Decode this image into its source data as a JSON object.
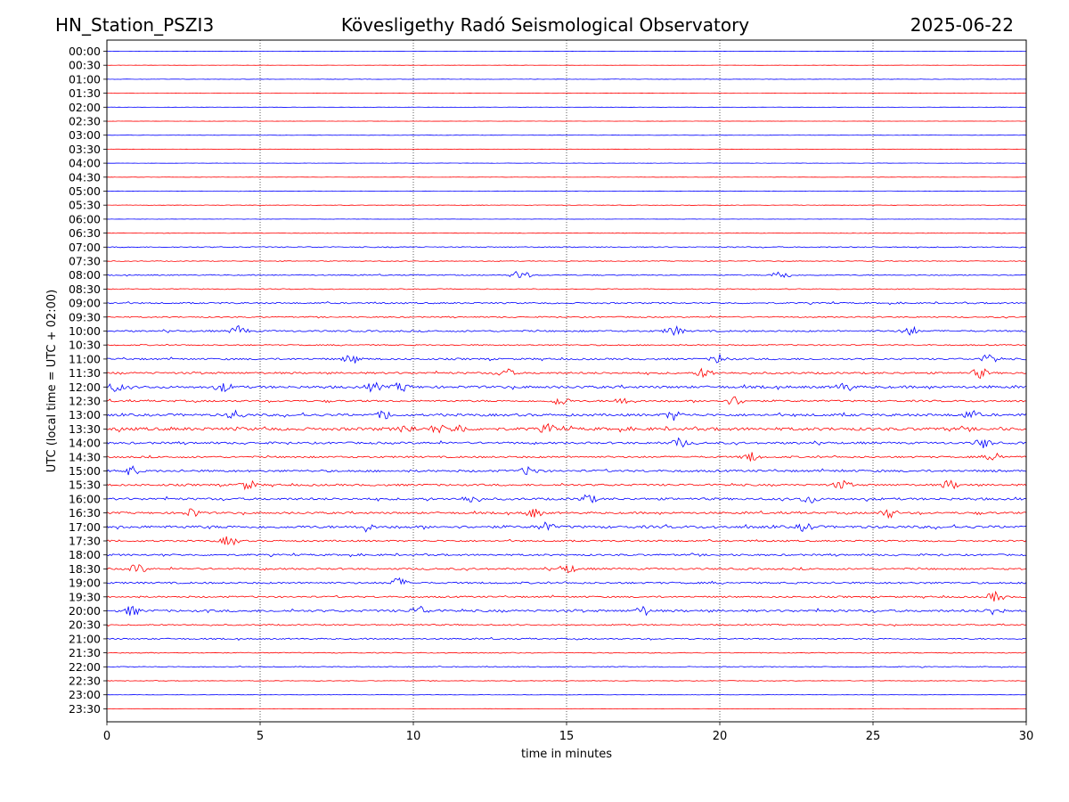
{
  "header": {
    "station": "HN_Station_PSZI3",
    "title": "Kövesligethy Radó Seismological Observatory",
    "date": "2025-06-22"
  },
  "chart_data": {
    "type": "line",
    "title": "Kövesligethy Radó Seismological Observatory",
    "xlabel": "time in minutes",
    "ylabel": "UTC (local time = UTC + 02:00)",
    "xlim": [
      0,
      30
    ],
    "x_ticks": [
      0,
      5,
      10,
      15,
      20,
      25,
      30
    ],
    "x_tick_labels": [
      "0",
      "5",
      "10",
      "15",
      "20",
      "25",
      "30"
    ],
    "grid": "vertical dotted lines at 5-minute ticks",
    "line_colors": [
      "#0000ff",
      "#ff0000"
    ],
    "y_tick_labels": [
      "00:00",
      "00:30",
      "01:00",
      "01:30",
      "02:00",
      "02:30",
      "03:00",
      "03:30",
      "04:00",
      "04:30",
      "05:00",
      "05:30",
      "06:00",
      "06:30",
      "07:00",
      "07:30",
      "08:00",
      "08:30",
      "09:00",
      "09:30",
      "10:00",
      "10:30",
      "11:00",
      "11:30",
      "12:00",
      "12:30",
      "13:00",
      "13:30",
      "14:00",
      "14:30",
      "15:00",
      "15:30",
      "16:00",
      "16:30",
      "17:00",
      "17:30",
      "18:00",
      "18:30",
      "19:00",
      "19:30",
      "20:00",
      "20:30",
      "21:00",
      "21:30",
      "22:00",
      "22:30",
      "23:00",
      "23:30"
    ],
    "trace_activity": [
      0.08,
      0.08,
      0.12,
      0.1,
      0.08,
      0.08,
      0.1,
      0.1,
      0.1,
      0.1,
      0.15,
      0.15,
      0.1,
      0.2,
      0.35,
      0.25,
      0.35,
      0.3,
      0.5,
      0.4,
      0.55,
      0.4,
      0.6,
      0.65,
      0.8,
      0.6,
      0.8,
      1.0,
      0.7,
      0.6,
      0.7,
      0.65,
      0.75,
      0.65,
      0.85,
      0.55,
      0.6,
      0.6,
      0.6,
      0.55,
      0.75,
      0.45,
      0.45,
      0.3,
      0.3,
      0.2,
      0.12,
      0.12
    ],
    "bursts": [
      {
        "row": 16,
        "at": [
          13.5,
          22
        ]
      },
      {
        "row": 20,
        "at": [
          4.3,
          18.5,
          26.2
        ]
      },
      {
        "row": 22,
        "at": [
          8.0,
          20.0,
          28.8
        ]
      },
      {
        "row": 23,
        "at": [
          13.0,
          19.5,
          28.5
        ]
      },
      {
        "row": 24,
        "at": [
          0.3,
          3.8,
          8.7,
          9.6,
          24.1
        ]
      },
      {
        "row": 25,
        "at": [
          14.8,
          16.9,
          20.5
        ]
      },
      {
        "row": 26,
        "at": [
          4.2,
          9.1,
          18.5,
          28.2
        ]
      },
      {
        "row": 27,
        "at": [
          9.8,
          10.8,
          11.5,
          14.4
        ]
      },
      {
        "row": 28,
        "at": [
          18.7,
          28.6
        ]
      },
      {
        "row": 29,
        "at": [
          21.0,
          29.0
        ]
      },
      {
        "row": 30,
        "at": [
          0.8,
          13.8
        ]
      },
      {
        "row": 31,
        "at": [
          4.6,
          24.0,
          27.5
        ]
      },
      {
        "row": 32,
        "at": [
          11.9,
          15.7,
          22.9
        ]
      },
      {
        "row": 33,
        "at": [
          2.8,
          13.9,
          25.5
        ]
      },
      {
        "row": 34,
        "at": [
          8.4,
          14.3,
          22.8
        ]
      },
      {
        "row": 35,
        "at": [
          4.0
        ]
      },
      {
        "row": 37,
        "at": [
          1.0,
          15.0
        ]
      },
      {
        "row": 38,
        "at": [
          9.5
        ]
      },
      {
        "row": 39,
        "at": [
          29.0
        ]
      },
      {
        "row": 40,
        "at": [
          0.8,
          10.2,
          17.5,
          29.0
        ]
      }
    ]
  }
}
